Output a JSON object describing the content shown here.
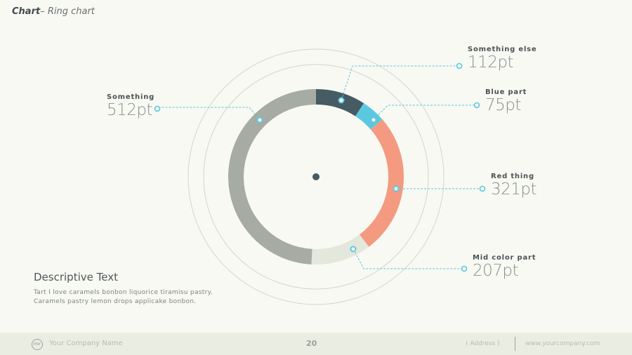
{
  "header": {
    "title_bold": "Chart",
    "title_rest": "– Ring chart"
  },
  "chart_data": {
    "type": "pie",
    "variant": "ring",
    "title": "Ring chart",
    "categories": [
      "Something else",
      "Blue part",
      "Red thing",
      "Mid color part",
      "Something"
    ],
    "values": [
      112,
      75,
      321,
      207,
      512
    ],
    "unit": "pt",
    "colors": [
      "#465b63",
      "#5bc8e0",
      "#f39a80",
      "#e4e7dc",
      "#a6aba4"
    ],
    "labels": [
      {
        "name": "Something else",
        "value": "112pt"
      },
      {
        "name": "Blue part",
        "value": "75pt"
      },
      {
        "name": "Red thing",
        "value": "321pt"
      },
      {
        "name": "Mid color part",
        "value": "207pt"
      },
      {
        "name": "Something",
        "value": "512pt"
      }
    ],
    "legend_position": "callouts"
  },
  "description": {
    "heading": "Descriptive Text",
    "line1": "Tart I love caramels bonbon liquorice tiramisu pastry.",
    "line2": "Caramels pastry lemon drops  applicake bonbon."
  },
  "footer": {
    "logo_text": "mir",
    "company": "Your Company Name",
    "page_number": "20",
    "address": "( Address )",
    "url": "www.yourcompany.com"
  },
  "colors": {
    "background": "#f8f9f2",
    "footer_bg": "#eaeee2",
    "accent": "#5bc8e0",
    "callout_line": "#5bc8e0"
  }
}
